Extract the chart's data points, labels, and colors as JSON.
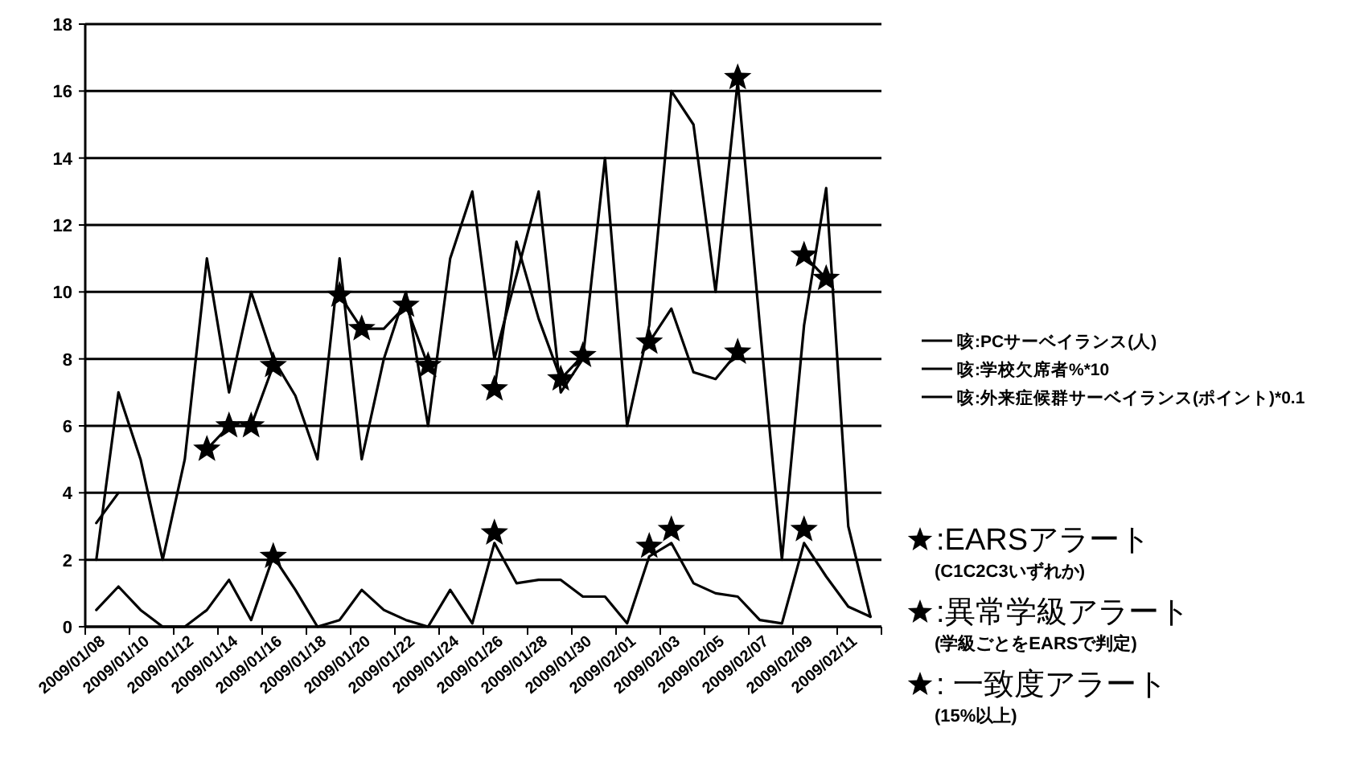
{
  "chart_data": {
    "type": "line",
    "categories": [
      "2009/01/08",
      null,
      "2009/01/10",
      null,
      "2009/01/12",
      null,
      "2009/01/14",
      null,
      "2009/01/16",
      null,
      "2009/01/18",
      null,
      "2009/01/20",
      null,
      "2009/01/22",
      null,
      "2009/01/24",
      null,
      "2009/01/26",
      null,
      "2009/01/28",
      null,
      "2009/01/30",
      null,
      "2009/02/01",
      null,
      "2009/02/03",
      null,
      "2009/02/05",
      null,
      "2009/02/07",
      null,
      "2009/02/09",
      null,
      "2009/02/11",
      null
    ],
    "series": [
      {
        "name": "咳:PCサーベイランス(人)",
        "color": "#000000",
        "values": [
          2,
          7,
          5,
          2,
          5,
          11,
          7,
          10,
          8,
          6.9,
          5,
          11,
          5,
          8,
          10,
          6,
          11,
          13,
          8,
          10.5,
          13,
          7,
          8,
          14,
          6,
          9,
          16,
          15,
          10,
          16.3,
          9,
          2,
          9,
          13.1,
          3,
          0.3
        ]
      },
      {
        "name": "咳:学校欠席者%*10",
        "color": "#000000",
        "values": [
          3.1,
          4,
          null,
          null,
          null,
          5.3,
          6,
          6,
          7.8,
          null,
          null,
          9.9,
          8.9,
          8.9,
          9.6,
          7.8,
          null,
          null,
          7.1,
          11.5,
          9.2,
          7.4,
          8.1,
          null,
          null,
          8.5,
          9.5,
          7.6,
          7.4,
          8.2,
          null,
          null,
          11.1,
          10.4,
          null,
          null
        ]
      },
      {
        "name": "咳:外来症候群サーベイランス(ポイント)*0.1",
        "color": "#000000",
        "values": [
          0.5,
          1.2,
          0.5,
          0,
          0,
          0.5,
          1.4,
          0.2,
          2.1,
          1.1,
          0,
          0.2,
          1.1,
          0.5,
          0.2,
          0,
          1.1,
          0.1,
          2.5,
          1.3,
          1.4,
          1.4,
          0.9,
          0.9,
          0.1,
          2.1,
          2.5,
          1.3,
          1,
          0.9,
          0.2,
          0.1,
          2.5,
          1.5,
          0.6,
          0.3
        ]
      },
      {
        "name": ":EARSアラート",
        "type": "scatter",
        "marker": "star",
        "color": "#000000",
        "values": [
          null,
          null,
          null,
          null,
          null,
          null,
          null,
          null,
          2.1,
          null,
          null,
          null,
          null,
          null,
          null,
          null,
          null,
          null,
          2.8,
          null,
          null,
          null,
          null,
          null,
          null,
          2.4,
          2.9,
          null,
          null,
          null,
          null,
          null,
          2.9,
          null,
          null,
          null
        ]
      },
      {
        "name": ":異常学級アラート",
        "type": "scatter",
        "marker": "star",
        "color": "#000000",
        "values": [
          null,
          null,
          null,
          null,
          null,
          5.3,
          6,
          6,
          7.8,
          null,
          null,
          9.9,
          8.9,
          null,
          9.6,
          7.8,
          null,
          null,
          7.1,
          null,
          null,
          7.4,
          8.1,
          null,
          null,
          8.5,
          null,
          null,
          null,
          8.2,
          null,
          null,
          11.1,
          10.4,
          null,
          null
        ]
      },
      {
        "name": ": 一致度アラート",
        "type": "scatter",
        "marker": "star",
        "color": "#000000",
        "values": [
          null,
          null,
          null,
          null,
          null,
          null,
          null,
          null,
          null,
          null,
          null,
          null,
          null,
          null,
          null,
          null,
          null,
          null,
          null,
          null,
          null,
          null,
          null,
          null,
          null,
          null,
          null,
          null,
          null,
          16.4,
          null,
          null,
          null,
          null,
          null,
          null
        ]
      }
    ],
    "ylim": [
      0,
      18
    ],
    "yticks": [
      0,
      2,
      4,
      6,
      8,
      10,
      12,
      14,
      16,
      18
    ],
    "grid": "y",
    "legend": "right",
    "marker": "none",
    "annotations": [
      "(C1C2C3いずれか)",
      "(学級ごとをEARSで判定)",
      "(15%以上)"
    ]
  }
}
